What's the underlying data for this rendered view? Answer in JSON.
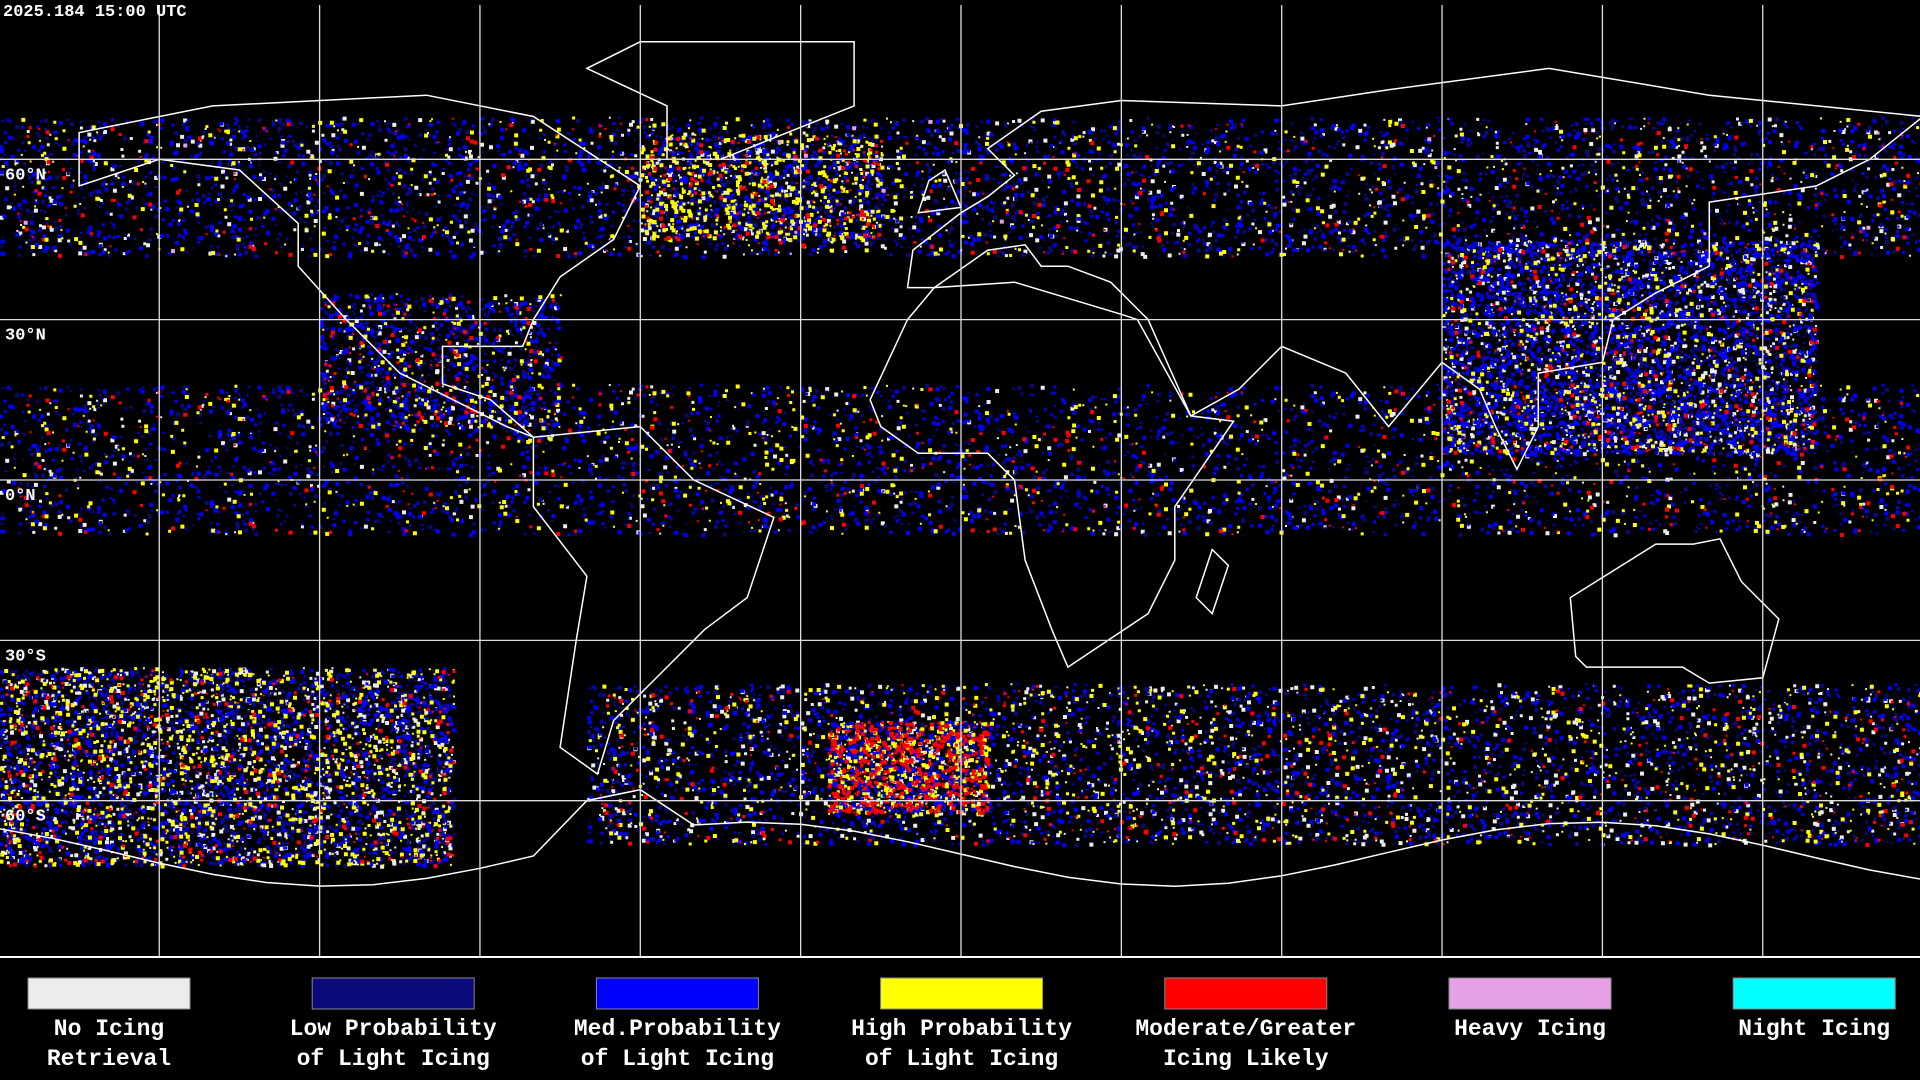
{
  "header": {
    "timestamp": "2025.184 15:00 UTC"
  },
  "map": {
    "latitude_labels": [
      "60°N",
      "30°N",
      "0°N",
      "30°S",
      "60°S"
    ]
  },
  "legend": {
    "items": [
      {
        "label": [
          "No Icing",
          "Retrieval"
        ],
        "color": "#ececec"
      },
      {
        "label": [
          "Low Probability",
          "of Light Icing"
        ],
        "color": "#0a0a7a"
      },
      {
        "label": [
          "Med.Probability",
          "of Light Icing"
        ],
        "color": "#0000ff"
      },
      {
        "label": [
          "High Probability",
          "of Light Icing"
        ],
        "color": "#ffff00"
      },
      {
        "label": [
          "Moderate/Greater",
          "Icing Likely"
        ],
        "color": "#ff0000"
      },
      {
        "label": [
          "Heavy Icing"
        ],
        "color": "#e6a0e6"
      },
      {
        "label": [
          "Night Icing"
        ],
        "color": "#00ffff"
      }
    ]
  }
}
